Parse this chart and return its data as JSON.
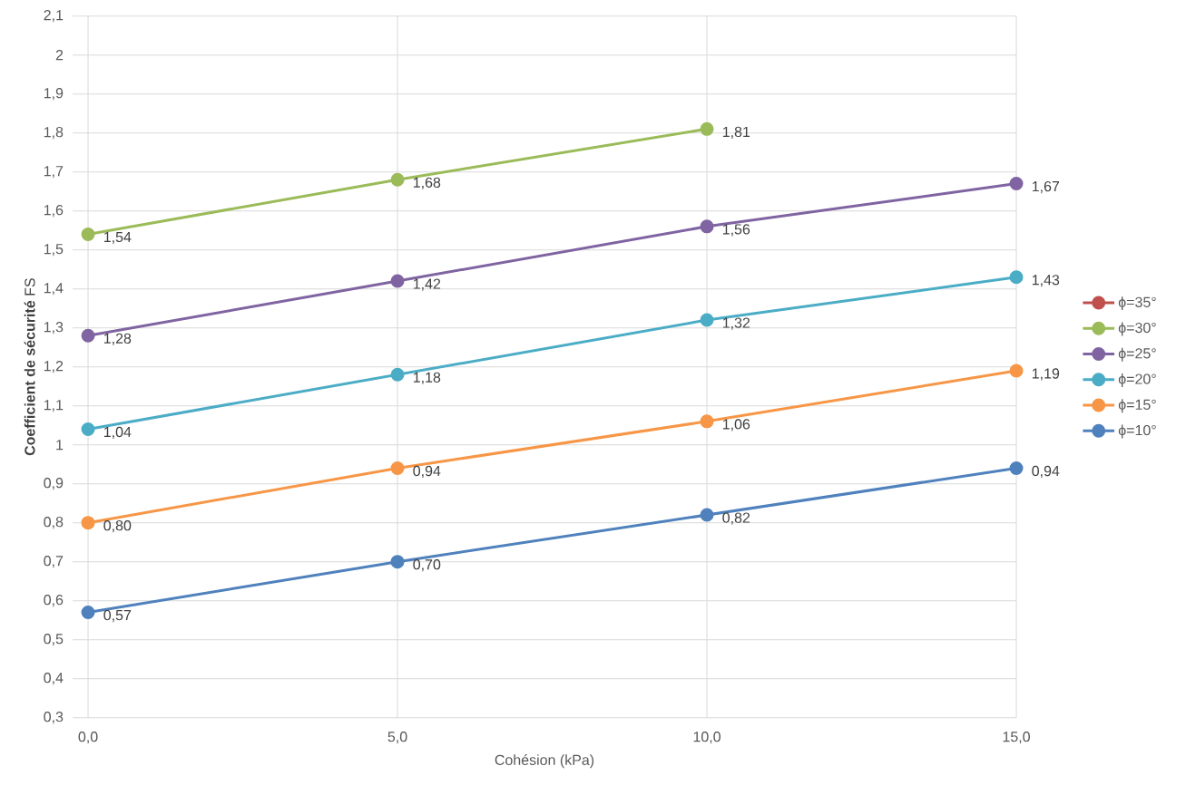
{
  "chart_data": {
    "type": "line",
    "xlabel": "Cohésion (kPa)",
    "ylabel": "**Coefficient de sécurité** FS",
    "categories": [
      "0,0",
      "5,0",
      "10,0",
      "15,0"
    ],
    "series": [
      {
        "name": "ϕ=35°",
        "color": "#c0504d",
        "values": [
          null,
          null,
          null,
          null
        ]
      },
      {
        "name": "ϕ=30°",
        "color": "#9bbb59",
        "values": [
          1.54,
          1.68,
          1.81,
          null
        ],
        "value_labels": [
          "1,54",
          "1,68",
          "1,81",
          null
        ]
      },
      {
        "name": "ϕ=25°",
        "color": "#8064a2",
        "values": [
          1.28,
          1.42,
          1.56,
          1.67
        ],
        "value_labels": [
          "1,28",
          "1,42",
          "1,56",
          "1,67"
        ]
      },
      {
        "name": "ϕ=20°",
        "color": "#4bacc6",
        "values": [
          1.04,
          1.18,
          1.32,
          1.43
        ],
        "value_labels": [
          "1,04",
          "1,18",
          "1,32",
          "1,43"
        ]
      },
      {
        "name": "ϕ=15°",
        "color": "#f79646",
        "values": [
          0.8,
          0.94,
          1.06,
          1.19
        ],
        "value_labels": [
          "0,80",
          "0,94",
          "1,06",
          "1,19"
        ]
      },
      {
        "name": "ϕ=10°",
        "color": "#4f81bd",
        "values": [
          0.57,
          0.7,
          0.82,
          0.94
        ],
        "value_labels": [
          "0,57",
          "0,70",
          "0,82",
          "0,94"
        ]
      }
    ],
    "ylim": [
      0.3,
      2.1
    ],
    "yticks": [
      {
        "value": 0.3,
        "label": "0,3"
      },
      {
        "value": 0.4,
        "label": "0,4"
      },
      {
        "value": 0.5,
        "label": "0,5"
      },
      {
        "value": 0.6,
        "label": "0,6"
      },
      {
        "value": 0.7,
        "label": "0,7"
      },
      {
        "value": 0.8,
        "label": "0,8"
      },
      {
        "value": 0.9,
        "label": "0,9"
      },
      1,
      {
        "value": 1.1,
        "label": "1,1"
      },
      {
        "value": 1.2,
        "label": "1,2"
      },
      {
        "value": 1.3,
        "label": "1,3"
      },
      {
        "value": 1.4,
        "label": "1,4"
      },
      {
        "value": 1.5,
        "label": "1,5"
      },
      {
        "value": 1.6,
        "label": "1,6"
      },
      {
        "value": 1.7,
        "label": "1,7"
      },
      {
        "value": 1.8,
        "label": "1,8"
      },
      {
        "value": 1.9,
        "label": "1,9"
      },
      2,
      {
        "value": 2.1,
        "label": "2,1"
      }
    ],
    "grid": true,
    "legend": "right",
    "marker": "circle",
    "line_style": "solid"
  }
}
